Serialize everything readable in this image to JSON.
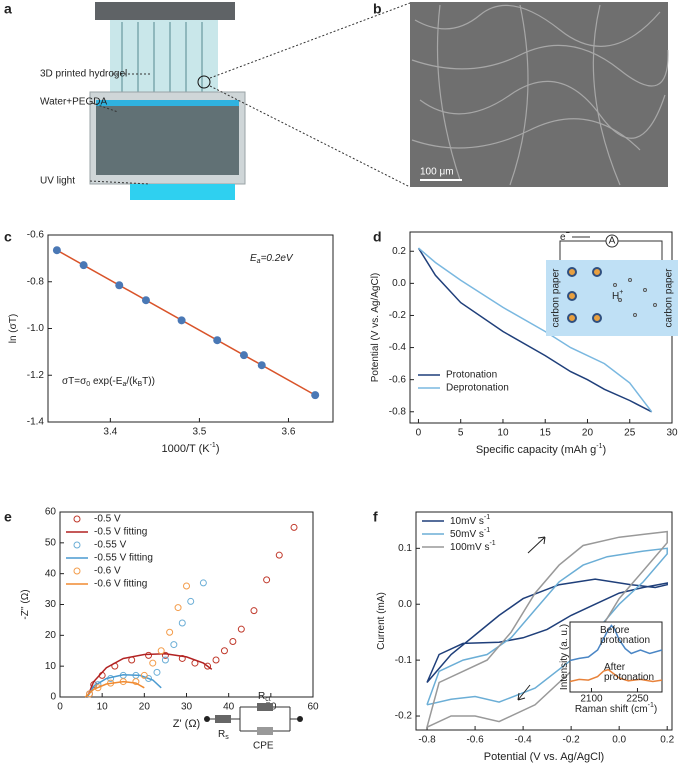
{
  "figure": {
    "panel_labels": [
      "a",
      "b",
      "c",
      "d",
      "e",
      "f"
    ],
    "panel_a": {
      "labels": [
        "3D printed hydrogel",
        "Water+PEGDA",
        "UV light"
      ]
    },
    "panel_b": {
      "scale_bar": "100 μm"
    },
    "panel_d_inset": {
      "electron": [
        "e",
        {
          "sup": "−"
        }
      ],
      "ammeter": "A",
      "proton": [
        "H",
        {
          "sup": "+"
        }
      ],
      "left_electrode": "carbon paper",
      "right_electrode": "carbon paper"
    },
    "panel_e_inset": {
      "rs": [
        "R",
        {
          "sub": "s"
        }
      ],
      "rct": [
        "R",
        {
          "sub": "ct"
        }
      ],
      "cpe": "CPE"
    }
  },
  "chart_data": [
    {
      "type": "scatter",
      "xlabel": [
        "1000/T (K",
        {
          "sup": "-1"
        },
        ")"
      ],
      "ylabel": [
        "ln (σT)"
      ],
      "xlim": [
        3.33,
        3.65
      ],
      "ylim": [
        -1.4,
        -0.6
      ],
      "xticks": [
        3.4,
        3.5,
        3.6
      ],
      "yticks": [
        -0.6,
        -0.8,
        {
          "value": -1,
          "label": "-1.0"
        },
        -1.2,
        -1.4
      ],
      "annotations": [
        [
          "E",
          {
            "sub": "a"
          },
          "=0.2eV"
        ],
        [
          "σT=σ",
          {
            "sub": "0"
          },
          " exp(-E",
          {
            "sub": "a"
          },
          "/(k",
          {
            "sub": "B"
          },
          "T))"
        ]
      ],
      "series": [
        {
          "style": "line",
          "color": "#d9542a",
          "x": [
            3.34,
            3.63
          ],
          "values": [
            -0.665,
            -1.285
          ]
        },
        {
          "style": "markers",
          "color": "#4a78b5",
          "x": [
            3.34,
            3.37,
            3.41,
            3.44,
            3.48,
            3.52,
            3.55,
            3.57,
            3.63
          ],
          "values": [
            -0.665,
            -0.729,
            -0.815,
            -0.879,
            -0.965,
            -1.05,
            -1.114,
            -1.157,
            -1.285
          ]
        }
      ]
    },
    {
      "type": "line",
      "xlabel": [
        "Specific capacity (mAh g",
        {
          "sup": "-1"
        },
        ")"
      ],
      "ylabel": [
        "Potential (V vs. Ag/AgCl)"
      ],
      "xlim": [
        -1,
        30
      ],
      "ylim": [
        -0.87,
        0.32
      ],
      "xticks": [
        0,
        5,
        10,
        15,
        20,
        25,
        30
      ],
      "yticks": [
        0.2,
        {
          "value": 0,
          "label": "0.0"
        },
        -0.2,
        -0.4,
        -0.6,
        -0.8
      ],
      "legend": "lower left",
      "series": [
        {
          "name": "Protonation",
          "style": "line",
          "color": "#1f3f7a",
          "x": [
            0,
            2,
            5,
            10,
            15,
            18,
            20,
            22,
            25,
            27.6
          ],
          "values": [
            0.22,
            0.05,
            -0.12,
            -0.3,
            -0.45,
            -0.55,
            -0.6,
            -0.66,
            -0.73,
            -0.8
          ]
        },
        {
          "name": "Deprotonation",
          "style": "line",
          "color": "#7ab8e0",
          "x": [
            27.6,
            25,
            22,
            18,
            15,
            10,
            5,
            2,
            0
          ],
          "values": [
            -0.8,
            -0.62,
            -0.5,
            -0.4,
            -0.3,
            -0.15,
            0.02,
            0.13,
            0.22
          ]
        }
      ]
    },
    {
      "type": "scatter",
      "xlabel": [
        "Z' (Ω)"
      ],
      "ylabel": [
        "-Z'' (Ω)"
      ],
      "xlim": [
        0,
        60
      ],
      "ylim": [
        0,
        60
      ],
      "xticks": [
        0,
        10,
        20,
        30,
        40,
        50,
        60
      ],
      "yticks": [
        0,
        10,
        20,
        30,
        40,
        50,
        60
      ],
      "legend": "upper left",
      "series": [
        {
          "name": "-0.5 V",
          "style": "open-markers",
          "color": "#c0392b",
          "x": [
            7,
            8,
            10,
            13,
            17,
            21,
            25,
            29,
            32,
            35,
            37,
            39,
            41,
            43,
            46,
            49,
            52,
            55.5
          ],
          "values": [
            1,
            4,
            7,
            10,
            12,
            13.5,
            13.5,
            12.5,
            11,
            10,
            12,
            15,
            18,
            22,
            28,
            38,
            46,
            55
          ]
        },
        {
          "name": "-0.5 V fitting",
          "style": "line",
          "color": "#b22222",
          "x": [
            6.5,
            8,
            11,
            15,
            20,
            25,
            30,
            34,
            36
          ],
          "values": [
            0,
            5,
            9.5,
            12.5,
            13.8,
            14,
            13,
            11,
            9
          ]
        },
        {
          "name": "-0.55 V",
          "style": "open-markers",
          "color": "#6baed6",
          "x": [
            7,
            9,
            12,
            15,
            18,
            21,
            23,
            25,
            27,
            29,
            31,
            34
          ],
          "values": [
            1,
            4,
            6,
            7,
            7,
            6,
            8,
            12,
            17,
            24,
            31,
            37
          ]
        },
        {
          "name": "-0.55 V fitting",
          "style": "line",
          "color": "#4a9ad0",
          "x": [
            6.5,
            8,
            11,
            15,
            19,
            22,
            24
          ],
          "values": [
            0,
            3.5,
            6,
            7.2,
            7,
            5.5,
            3
          ]
        },
        {
          "name": "-0.6 V",
          "style": "open-markers",
          "color": "#f39c4a",
          "x": [
            7,
            9,
            12,
            15,
            18,
            20,
            22,
            24,
            26,
            28,
            30
          ],
          "values": [
            1,
            3,
            4.5,
            5,
            5,
            7,
            11,
            15,
            21,
            29,
            36
          ]
        },
        {
          "name": "-0.6 V fitting",
          "style": "line",
          "color": "#f08a30",
          "x": [
            6,
            8,
            11,
            15,
            18,
            20
          ],
          "values": [
            0,
            2.5,
            4.2,
            5,
            4.5,
            3
          ]
        }
      ]
    },
    {
      "type": "line",
      "xlabel": [
        "Potential (V vs. Ag/AgCl)"
      ],
      "ylabel": [
        "Current (mA)"
      ],
      "xlim": [
        -0.846,
        0.22
      ],
      "ylim": [
        -0.225,
        0.165
      ],
      "xticks": [
        -0.8,
        -0.6,
        -0.4,
        -0.2,
        {
          "value": 0,
          "label": "0.0"
        },
        0.2
      ],
      "yticks": [
        0.1,
        {
          "value": 0,
          "label": "0.0"
        },
        -0.1,
        -0.2
      ],
      "legend": "upper left",
      "series": [
        {
          "name": [
            "10mV s",
            {
              "sup": "-1"
            }
          ],
          "style": "line",
          "color": "#1f3f7a",
          "x": [
            -0.8,
            -0.75,
            -0.65,
            -0.5,
            -0.4,
            -0.3,
            -0.2,
            -0.1,
            0,
            0.1,
            0.2,
            0.2,
            0.15,
            0.05,
            -0.1,
            -0.25,
            -0.4,
            -0.5,
            -0.6,
            -0.7,
            -0.8
          ],
          "values": [
            -0.14,
            -0.09,
            -0.07,
            -0.068,
            -0.06,
            -0.045,
            -0.02,
            0,
            0.02,
            0.03,
            0.038,
            0.035,
            0.03,
            0.035,
            0.045,
            0.035,
            0.01,
            -0.02,
            -0.055,
            -0.09,
            -0.14
          ]
        },
        {
          "name": [
            "50mV s",
            {
              "sup": "-1"
            }
          ],
          "style": "line",
          "color": "#6baed6",
          "x": [
            -0.8,
            -0.75,
            -0.65,
            -0.55,
            -0.45,
            -0.35,
            -0.25,
            -0.15,
            -0.05,
            0.1,
            0.2,
            0.2,
            0.1,
            0,
            -0.1,
            -0.2,
            -0.35,
            -0.5,
            -0.6,
            -0.7,
            -0.8
          ],
          "values": [
            -0.18,
            -0.12,
            -0.1,
            -0.09,
            -0.06,
            -0.01,
            0.04,
            0.07,
            0.085,
            0.095,
            0.1,
            0.09,
            0.04,
            0,
            -0.05,
            -0.1,
            -0.15,
            -0.175,
            -0.165,
            -0.17,
            -0.18
          ]
        },
        {
          "name": [
            "100mV s",
            {
              "sup": "-1"
            }
          ],
          "style": "line",
          "color": "#999999",
          "x": [
            -0.8,
            -0.75,
            -0.65,
            -0.55,
            -0.45,
            -0.35,
            -0.25,
            -0.15,
            0,
            0.1,
            0.2,
            0.2,
            0.1,
            0,
            -0.1,
            -0.2,
            -0.35,
            -0.5,
            -0.6,
            -0.7,
            -0.8
          ],
          "values": [
            -0.22,
            -0.14,
            -0.12,
            -0.1,
            -0.05,
            0.02,
            0.07,
            0.105,
            0.12,
            0.125,
            0.13,
            0.11,
            0.06,
            0.01,
            -0.06,
            -0.12,
            -0.18,
            -0.21,
            -0.2,
            -0.2,
            -0.22
          ]
        }
      ]
    },
    {
      "type": "line",
      "xlabel": [
        "Raman shift (cm",
        {
          "sup": "-1"
        },
        ")"
      ],
      "ylabel": [
        "Intensity (a. u.)"
      ],
      "xlim": [
        2030,
        2330
      ],
      "ylim": [
        0,
        1
      ],
      "xticks": [
        2100,
        2250
      ],
      "annotations": [
        [
          "Before"
        ],
        [
          "protonation"
        ],
        [
          "After"
        ],
        [
          "protonation"
        ]
      ],
      "series": [
        {
          "style": "line",
          "color": "#4a86c5",
          "x": [
            2030,
            2060,
            2090,
            2120,
            2150,
            2165,
            2175,
            2190,
            2210,
            2230,
            2260,
            2290,
            2330
          ],
          "values": [
            0.45,
            0.48,
            0.5,
            0.6,
            0.85,
            0.95,
            0.9,
            0.75,
            0.62,
            0.55,
            0.6,
            0.55,
            0.6
          ]
        },
        {
          "style": "line",
          "color": "#e8823a",
          "x": [
            2030,
            2060,
            2090,
            2120,
            2140,
            2155,
            2170,
            2190,
            2220,
            2260,
            2300,
            2330
          ],
          "values": [
            0.15,
            0.18,
            0.17,
            0.22,
            0.3,
            0.32,
            0.27,
            0.2,
            0.16,
            0.18,
            0.15,
            0.17
          ]
        }
      ]
    }
  ]
}
